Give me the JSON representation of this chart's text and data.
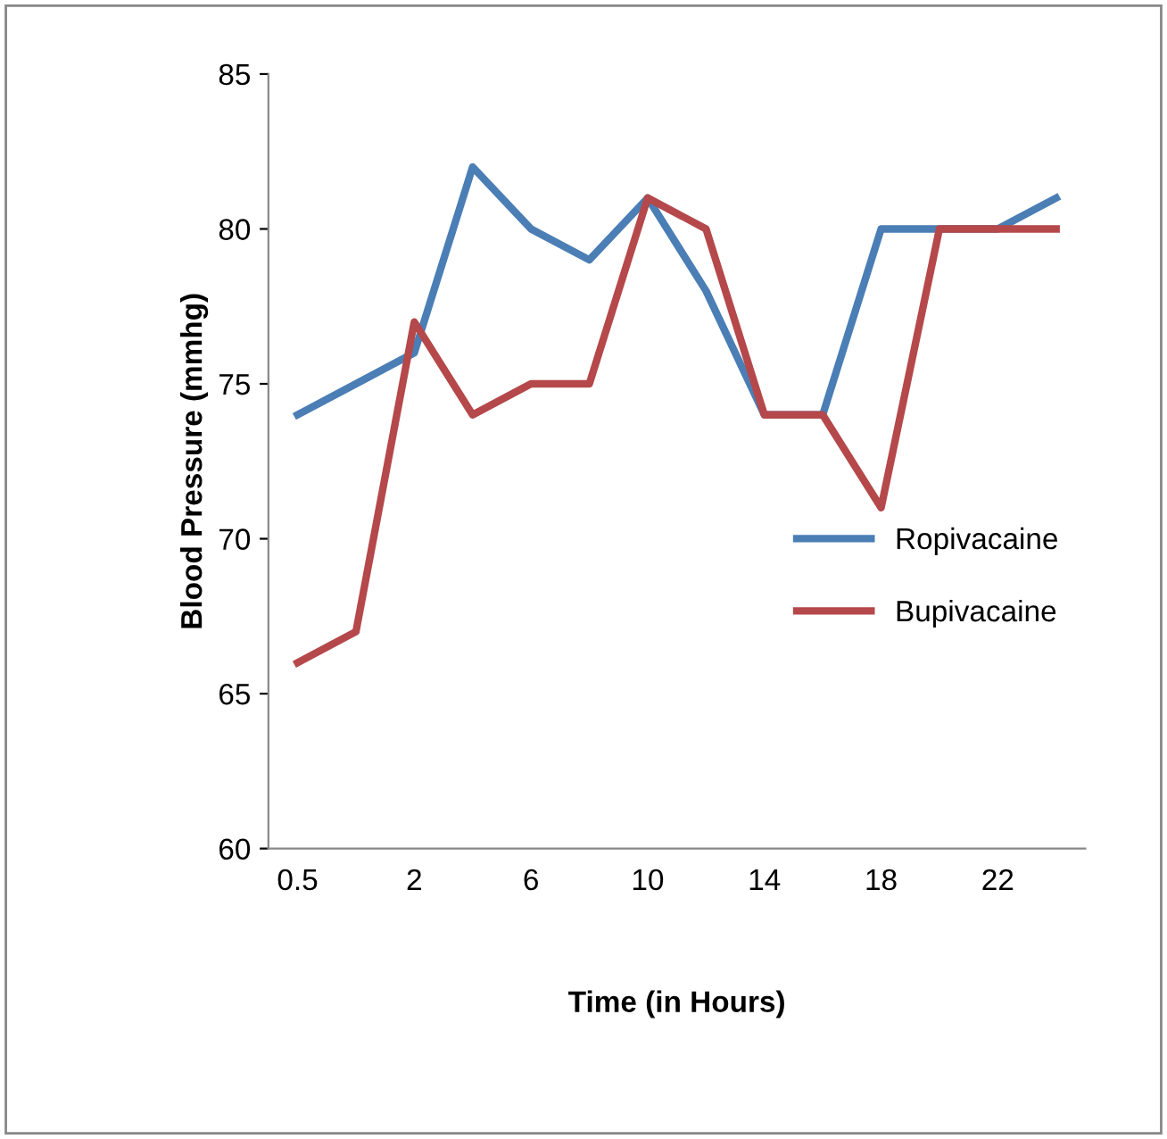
{
  "chart_data": {
    "type": "line",
    "xlabel": "Time (in Hours)",
    "ylabel": "Blood Pressure (mmhg)",
    "categories": [
      "0.5",
      null,
      "2",
      null,
      "6",
      null,
      "10",
      null,
      "14",
      null,
      "18",
      null,
      "22",
      null
    ],
    "series": [
      {
        "name": "Ropivacaine",
        "color": "#4a7eb5",
        "values": [
          74,
          75,
          76,
          82,
          80,
          79,
          81,
          78,
          74,
          74,
          80,
          80,
          80,
          81
        ]
      },
      {
        "name": "Bupivacaine",
        "color": "#b5484a",
        "values": [
          66,
          67,
          77,
          74,
          75,
          75,
          81,
          80,
          74,
          74,
          71,
          80,
          80,
          80
        ]
      }
    ],
    "ylim": [
      60,
      85
    ],
    "yticks": [
      60,
      65,
      70,
      75,
      80,
      85
    ],
    "grid": false,
    "legend": "right",
    "marker": "none",
    "line_style": "solid"
  }
}
